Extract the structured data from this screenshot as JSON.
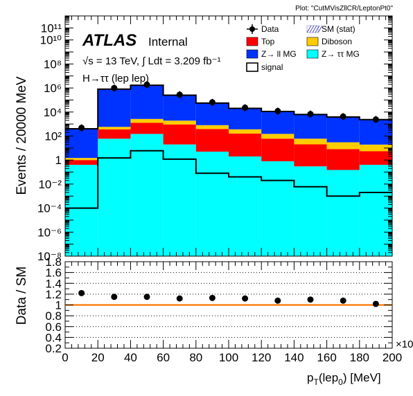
{
  "plot_label": "Plot: \"CutMVisZllCR/LeptonPt0\"",
  "atlas_label": "ATLAS",
  "atlas_status": "Internal",
  "energy_label": "√s = 13 TeV, ∫ Ldt = 3.209 fb⁻¹",
  "channel_label": "H→ττ (lep lep)",
  "ylabel_main": "Events / 20000 MeV",
  "ylabel_ratio": "Data / SM",
  "xlabel": "p_T(lep_0) [MeV]",
  "x_multiplier": "×10³",
  "legend": [
    {
      "label": "Data",
      "key": "data"
    },
    {
      "label": "SM (stat)",
      "key": "sm"
    },
    {
      "label": "Top",
      "key": "top",
      "color": "#ff0000"
    },
    {
      "label": "Diboson",
      "key": "diboson",
      "color": "#ffcc00"
    },
    {
      "label": "Z→ ll MG",
      "key": "zll",
      "color": "#0033ff"
    },
    {
      "label": "Z→ ττ MG",
      "key": "ztt",
      "color": "#00ffff"
    },
    {
      "label": "signal",
      "key": "signal"
    }
  ],
  "chart_data": [
    {
      "type": "bar",
      "stacked": true,
      "log_y": true,
      "x_bin_edges": [
        0,
        20,
        40,
        60,
        80,
        100,
        120,
        140,
        160,
        180,
        200
      ],
      "xlim": [
        0,
        200
      ],
      "ylim": [
        1e-08,
        1000000000000.0
      ],
      "x_tick_labels": [
        "0",
        "20",
        "40",
        "60",
        "80",
        "100",
        "120",
        "140",
        "160",
        "180",
        "200"
      ],
      "y_tick_labels": [
        "10⁻⁸",
        "10⁻⁶",
        "10⁻⁴",
        "10⁻²",
        "1",
        "10²",
        "10⁴",
        "10⁶",
        "10⁸",
        "10¹⁰",
        "10¹¹"
      ],
      "stack_order": [
        "ztt",
        "top",
        "diboson",
        "zll"
      ],
      "series": [
        {
          "name": "Z→ ττ MG",
          "key": "ztt",
          "color": "#00ffff",
          "values": [
            0.4,
            60,
            150,
            20,
            5,
            2,
            0.8,
            0.3,
            0.15,
            0.4
          ]
        },
        {
          "name": "Top",
          "key": "top",
          "color": "#ff0000",
          "values": [
            0.6,
            300,
            1100,
            900,
            380,
            160,
            60,
            20,
            8,
            5
          ]
        },
        {
          "name": "Diboson",
          "key": "diboson",
          "color": "#ffcc00",
          "values": [
            0.5,
            220,
            1400,
            1000,
            420,
            200,
            90,
            40,
            22,
            14
          ]
        },
        {
          "name": "Z→ ll MG",
          "key": "zll",
          "color": "#0033ff",
          "values": [
            400,
            800000,
            1700000,
            250000,
            55000,
            20000,
            11000,
            6200,
            3800,
            2300
          ]
        }
      ],
      "data": {
        "name": "Data",
        "values": [
          480,
          1000000,
          1900000,
          280000,
          65000,
          23000,
          12000,
          6800,
          4200,
          2400
        ]
      },
      "signal": {
        "name": "signal",
        "values": [
          0.0001,
          1.5,
          6,
          1.2,
          0.08,
          0.04,
          0.02,
          0.006,
          0.001,
          0.002
        ]
      }
    },
    {
      "type": "scatter",
      "x": [
        10,
        30,
        50,
        70,
        90,
        110,
        130,
        150,
        170,
        190
      ],
      "y": [
        1.22,
        1.15,
        1.15,
        1.12,
        1.13,
        1.12,
        1.08,
        1.1,
        1.08,
        1.02
      ],
      "reference_line": 1.0,
      "xlim": [
        0,
        200
      ],
      "ylim": [
        0.2,
        1.8
      ],
      "y_tick_labels": [
        "0.2",
        "0.4",
        "0.6",
        "0.8",
        "1",
        "1.2",
        "1.4",
        "1.6",
        "1.8"
      ],
      "grid": "horizontal dotted"
    }
  ]
}
